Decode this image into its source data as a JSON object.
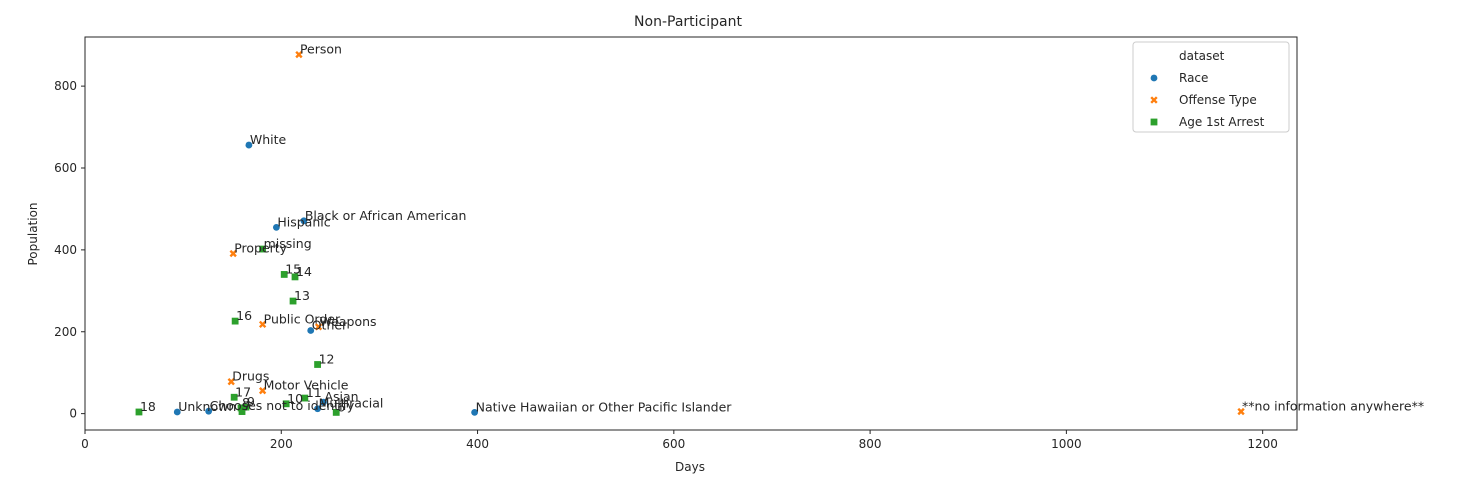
{
  "chart_data": {
    "type": "scatter",
    "title": "Non-Participant",
    "xlabel": "Days",
    "ylabel": "Population",
    "xlim": [
      0,
      1235
    ],
    "ylim": [
      -40,
      920
    ],
    "xticks": [
      0,
      200,
      400,
      600,
      800,
      1000,
      1200
    ],
    "yticks": [
      0,
      200,
      400,
      600,
      800
    ],
    "grid": false,
    "legend": {
      "title": "dataset",
      "position": "top-right"
    },
    "series": [
      {
        "name": "Race",
        "marker": "circle",
        "color": "#1f77b4",
        "points": [
          {
            "label": "White",
            "x": 167,
            "y": 656
          },
          {
            "label": "Black or African American",
            "x": 223,
            "y": 471
          },
          {
            "label": "Hispanic",
            "x": 195,
            "y": 455
          },
          {
            "label": "Other",
            "x": 230,
            "y": 203
          },
          {
            "label": "Asian",
            "x": 243,
            "y": 28
          },
          {
            "label": "Multiracial",
            "x": 237,
            "y": 12
          },
          {
            "label": "Unknown",
            "x": 94,
            "y": 4
          },
          {
            "label": "Chooses not to identify",
            "x": 126,
            "y": 6
          },
          {
            "label": "Native Hawaiian or Other Pacific Islander",
            "x": 397,
            "y": 3
          }
        ]
      },
      {
        "name": "Offense Type",
        "marker": "x",
        "color": "#ff7f0e",
        "points": [
          {
            "label": "Person",
            "x": 218,
            "y": 877
          },
          {
            "label": "Property",
            "x": 151,
            "y": 391
          },
          {
            "label": "Public Order",
            "x": 181,
            "y": 218
          },
          {
            "label": "Weapons",
            "x": 238,
            "y": 212
          },
          {
            "label": "Drugs",
            "x": 149,
            "y": 78
          },
          {
            "label": "Motor Vehicle",
            "x": 181,
            "y": 56
          },
          {
            "label": "**no information anywhere**",
            "x": 1178,
            "y": 5
          }
        ]
      },
      {
        "name": "Age 1st Arrest",
        "marker": "square",
        "color": "#2ca02c",
        "points": [
          {
            "label": "missing",
            "x": 181,
            "y": 402
          },
          {
            "label": "15",
            "x": 203,
            "y": 340
          },
          {
            "label": "14",
            "x": 214,
            "y": 334
          },
          {
            "label": "13",
            "x": 212,
            "y": 275
          },
          {
            "label": "16",
            "x": 153,
            "y": 226
          },
          {
            "label": "12",
            "x": 237,
            "y": 120
          },
          {
            "label": "17",
            "x": 152,
            "y": 40
          },
          {
            "label": "11",
            "x": 224,
            "y": 38
          },
          {
            "label": "10",
            "x": 205,
            "y": 24
          },
          {
            "label": "9",
            "x": 164,
            "y": 16
          },
          {
            "label": "8",
            "x": 159,
            "y": 14
          },
          {
            "label": "18",
            "x": 55,
            "y": 4
          },
          {
            "label": "7",
            "x": 160,
            "y": 5
          },
          {
            "label": "6",
            "x": 256,
            "y": 3
          }
        ]
      }
    ]
  }
}
